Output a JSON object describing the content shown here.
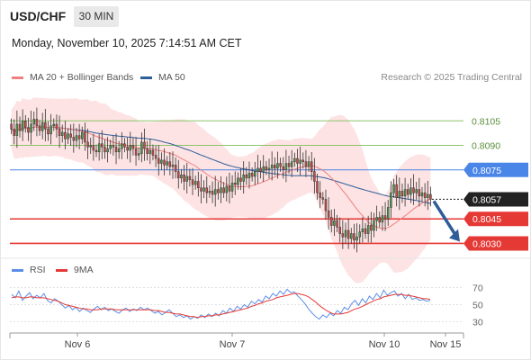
{
  "header": {
    "symbol": "USD/CHF",
    "timeframe": "30 MIN",
    "datetime": "Monday, November 10, 2025 7:14:51 AM CET"
  },
  "legend": {
    "ma20_label": "MA 20 + Bollinger Bands",
    "ma50_label": "MA 50",
    "rsi_label": "RSI",
    "ma9_label": "9MA",
    "copyright": "Research © 2025 Trading Central"
  },
  "colors": {
    "up_candle": "#4c9a4c",
    "down_candle": "#c94a4a",
    "ma20": "#f08080",
    "ma50": "#2f5d9a",
    "bollinger_fill": "#fde0e0",
    "resistance_line": "#8dc36b",
    "pivot_line": "#4a86e8",
    "support_line": "#e53935",
    "rsi": "#5b8ee6",
    "rsi_ma": "#e53935",
    "arrow": "#2f5d9a"
  },
  "chart_data": {
    "type": "candlestick",
    "instrument": "USD/CHF",
    "timeframe": "30 MIN",
    "x_tick_labels": [
      "Nov 6",
      "Nov 7",
      "Nov 10",
      "Nov 15"
    ],
    "y_range": [
      0.8022,
      0.8125
    ],
    "last_price": 0.8057,
    "levels": [
      {
        "label": "0.8105",
        "value": 0.8105,
        "kind": "resistance"
      },
      {
        "label": "0.8090",
        "value": 0.809,
        "kind": "resistance"
      },
      {
        "label": "0.8075",
        "value": 0.8075,
        "kind": "pivot"
      },
      {
        "label": "0.8045",
        "value": 0.8045,
        "kind": "support"
      },
      {
        "label": "0.8030",
        "value": 0.803,
        "kind": "support"
      }
    ],
    "forecast_arrow": {
      "from": 0.8057,
      "to": 0.803,
      "direction": "down"
    },
    "series": [
      {
        "name": "MA 20 + Bollinger Bands"
      },
      {
        "name": "MA 50"
      }
    ],
    "close": [
      0.81,
      0.8096,
      0.8103,
      0.8099,
      0.8105,
      0.8101,
      0.8098,
      0.8103,
      0.8106,
      0.8102,
      0.8099,
      0.8104,
      0.81,
      0.8097,
      0.8102,
      0.8103,
      0.81,
      0.8096,
      0.8098,
      0.8094,
      0.8097,
      0.8095,
      0.8093,
      0.8096,
      0.8094,
      0.8098,
      0.8092,
      0.8089,
      0.809,
      0.8087,
      0.8086,
      0.8091,
      0.8089,
      0.8086,
      0.8088,
      0.809,
      0.8089,
      0.8086,
      0.8088,
      0.8091,
      0.8089,
      0.8087,
      0.809,
      0.8088,
      0.8084,
      0.8085,
      0.8092,
      0.8088,
      0.8085,
      0.8087,
      0.8084,
      0.8082,
      0.8079,
      0.8081,
      0.8078,
      0.808,
      0.8077,
      0.8078,
      0.8074,
      0.807,
      0.8072,
      0.8068,
      0.8071,
      0.8069,
      0.8066,
      0.8068,
      0.8064,
      0.8062,
      0.8064,
      0.8061,
      0.8062,
      0.806,
      0.8063,
      0.8061,
      0.8064,
      0.8061,
      0.8065,
      0.8062,
      0.8067,
      0.8066,
      0.807,
      0.8068,
      0.8072,
      0.807,
      0.8073,
      0.8071,
      0.8074,
      0.8076,
      0.8074,
      0.8077,
      0.8075,
      0.8076,
      0.8078,
      0.8076,
      0.8079,
      0.8077,
      0.8075,
      0.8079,
      0.8077,
      0.808,
      0.8082,
      0.8079,
      0.8081,
      0.808,
      0.8077,
      0.808,
      0.8074,
      0.8068,
      0.8061,
      0.8058,
      0.8057,
      0.805,
      0.8046,
      0.8041,
      0.8044,
      0.804,
      0.8036,
      0.8034,
      0.8038,
      0.8033,
      0.8036,
      0.8032,
      0.8034,
      0.8037,
      0.8039,
      0.8036,
      0.8041,
      0.8038,
      0.8044,
      0.8046,
      0.8043,
      0.8047,
      0.8045,
      0.8052,
      0.8061,
      0.8066,
      0.8058,
      0.8062,
      0.8059,
      0.8063,
      0.806,
      0.8064,
      0.8061,
      0.8063,
      0.8059,
      0.8061,
      0.8058,
      0.806,
      0.8057
    ],
    "rsi": {
      "y_ticks": [
        70,
        50,
        30
      ],
      "y_range": [
        20,
        80
      ],
      "values": [
        62,
        58,
        66,
        55,
        60,
        64,
        57,
        61,
        58,
        63,
        55,
        52,
        57,
        54,
        50,
        46,
        49,
        44,
        47,
        42,
        46,
        43,
        41,
        45,
        48,
        44,
        47,
        43,
        45,
        42,
        40,
        44,
        46,
        42,
        45,
        43,
        47,
        44,
        46,
        43,
        40,
        42,
        38,
        41,
        44,
        40,
        36,
        38,
        35,
        37,
        33,
        36,
        34,
        38,
        35,
        39,
        36,
        40,
        37,
        43,
        40,
        46,
        42,
        48,
        45,
        50,
        47,
        54,
        51,
        56,
        53,
        60,
        57,
        63,
        60,
        66,
        62,
        68,
        64,
        65,
        60,
        56,
        51,
        45,
        40,
        36,
        33,
        38,
        35,
        40,
        37,
        43,
        40,
        47,
        44,
        51,
        55,
        49,
        57,
        52,
        60,
        56,
        63,
        58,
        67,
        61,
        64,
        66,
        60,
        63,
        57,
        62,
        56,
        58,
        55,
        56,
        54,
        55
      ],
      "ma": [
        58,
        59,
        59,
        58,
        58,
        59,
        59,
        58,
        58,
        58,
        57,
        56,
        55,
        54,
        52,
        50,
        49,
        48,
        47,
        46,
        45,
        45,
        44,
        44,
        44,
        45,
        45,
        45,
        45,
        44,
        44,
        44,
        44,
        44,
        44,
        44,
        44,
        44,
        44,
        44,
        43,
        43,
        42,
        41,
        41,
        40,
        39,
        39,
        38,
        37,
        36,
        36,
        35,
        36,
        36,
        37,
        37,
        38,
        38,
        39,
        40,
        41,
        42,
        43,
        44,
        45,
        46,
        48,
        49,
        51,
        52,
        54,
        55,
        56,
        58,
        59,
        60,
        61,
        62,
        63,
        63,
        62,
        61,
        59,
        56,
        53,
        49,
        46,
        43,
        41,
        39,
        39,
        39,
        40,
        41,
        43,
        45,
        46,
        48,
        50,
        52,
        54,
        56,
        57,
        59,
        60,
        61,
        62,
        62,
        62,
        61,
        61,
        60,
        59,
        58,
        57,
        57,
        56
      ]
    }
  }
}
